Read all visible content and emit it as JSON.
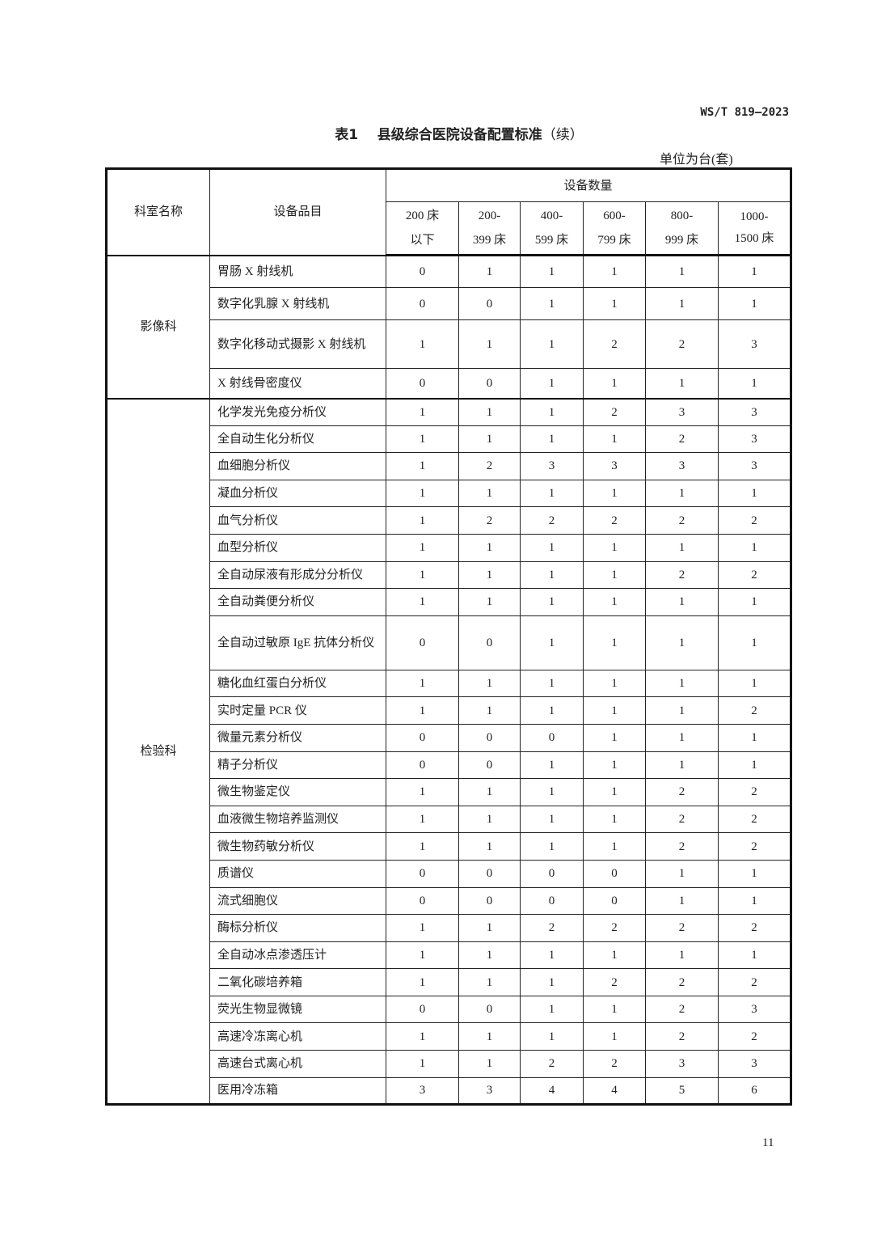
{
  "document": {
    "standard_code": "WS/T 819—2023",
    "title_prefix": "表1",
    "title": "县级综合医院设备配置标准",
    "title_suffix": "（续）",
    "unit": "单位为台(套)",
    "page_number": "11"
  },
  "table": {
    "col_department": "科室名称",
    "col_item": "设备品目",
    "col_quantity": "设备数量",
    "bed_columns": [
      [
        "200 床",
        "以下"
      ],
      [
        "200-",
        "399 床"
      ],
      [
        "400-",
        "599 床"
      ],
      [
        "600-",
        "799 床"
      ],
      [
        "800-",
        "999 床"
      ],
      [
        "1000-",
        "1500 床"
      ]
    ],
    "groups": [
      {
        "department": "影像科",
        "rows": [
          {
            "item": "胃肠 X 射线机",
            "values": [
              "0",
              "1",
              "1",
              "1",
              "1",
              "1"
            ]
          },
          {
            "item": "数字化乳腺 X 射线机",
            "values": [
              "0",
              "0",
              "1",
              "1",
              "1",
              "1"
            ]
          },
          {
            "item": "数字化移动式摄影 X 射线机",
            "values": [
              "1",
              "1",
              "1",
              "2",
              "2",
              "3"
            ]
          },
          {
            "item": "X 射线骨密度仪",
            "values": [
              "0",
              "0",
              "1",
              "1",
              "1",
              "1"
            ]
          }
        ]
      },
      {
        "department": "检验科",
        "rows": [
          {
            "item": "化学发光免疫分析仪",
            "values": [
              "1",
              "1",
              "1",
              "2",
              "3",
              "3"
            ]
          },
          {
            "item": "全自动生化分析仪",
            "values": [
              "1",
              "1",
              "1",
              "1",
              "2",
              "3"
            ]
          },
          {
            "item": "血细胞分析仪",
            "values": [
              "1",
              "2",
              "3",
              "3",
              "3",
              "3"
            ]
          },
          {
            "item": "凝血分析仪",
            "values": [
              "1",
              "1",
              "1",
              "1",
              "1",
              "1"
            ]
          },
          {
            "item": "血气分析仪",
            "values": [
              "1",
              "2",
              "2",
              "2",
              "2",
              "2"
            ]
          },
          {
            "item": "血型分析仪",
            "values": [
              "1",
              "1",
              "1",
              "1",
              "1",
              "1"
            ]
          },
          {
            "item": "全自动尿液有形成分分析仪",
            "values": [
              "1",
              "1",
              "1",
              "1",
              "2",
              "2"
            ]
          },
          {
            "item": "全自动粪便分析仪",
            "values": [
              "1",
              "1",
              "1",
              "1",
              "1",
              "1"
            ]
          },
          {
            "item": "全自动过敏原 IgE 抗体分析仪",
            "values": [
              "0",
              "0",
              "1",
              "1",
              "1",
              "1"
            ]
          },
          {
            "item": "糖化血红蛋白分析仪",
            "values": [
              "1",
              "1",
              "1",
              "1",
              "1",
              "1"
            ]
          },
          {
            "item": "实时定量 PCR 仪",
            "values": [
              "1",
              "1",
              "1",
              "1",
              "1",
              "2"
            ]
          },
          {
            "item": "微量元素分析仪",
            "values": [
              "0",
              "0",
              "0",
              "1",
              "1",
              "1"
            ]
          },
          {
            "item": "精子分析仪",
            "values": [
              "0",
              "0",
              "1",
              "1",
              "1",
              "1"
            ]
          },
          {
            "item": "微生物鉴定仪",
            "values": [
              "1",
              "1",
              "1",
              "1",
              "2",
              "2"
            ]
          },
          {
            "item": "血液微生物培养监测仪",
            "values": [
              "1",
              "1",
              "1",
              "1",
              "2",
              "2"
            ]
          },
          {
            "item": "微生物药敏分析仪",
            "values": [
              "1",
              "1",
              "1",
              "1",
              "2",
              "2"
            ]
          },
          {
            "item": "质谱仪",
            "values": [
              "0",
              "0",
              "0",
              "0",
              "1",
              "1"
            ]
          },
          {
            "item": "流式细胞仪",
            "values": [
              "0",
              "0",
              "0",
              "0",
              "1",
              "1"
            ]
          },
          {
            "item": "酶标分析仪",
            "values": [
              "1",
              "1",
              "2",
              "2",
              "2",
              "2"
            ]
          },
          {
            "item": "全自动冰点渗透压计",
            "values": [
              "1",
              "1",
              "1",
              "1",
              "1",
              "1"
            ]
          },
          {
            "item": "二氧化碳培养箱",
            "values": [
              "1",
              "1",
              "1",
              "2",
              "2",
              "2"
            ]
          },
          {
            "item": "荧光生物显微镜",
            "values": [
              "0",
              "0",
              "1",
              "1",
              "2",
              "3"
            ]
          },
          {
            "item": "高速冷冻离心机",
            "values": [
              "1",
              "1",
              "1",
              "1",
              "2",
              "2"
            ]
          },
          {
            "item": "高速台式离心机",
            "values": [
              "1",
              "1",
              "2",
              "2",
              "3",
              "3"
            ]
          },
          {
            "item": "医用冷冻箱",
            "values": [
              "3",
              "3",
              "4",
              "4",
              "5",
              "6"
            ]
          }
        ]
      }
    ]
  }
}
